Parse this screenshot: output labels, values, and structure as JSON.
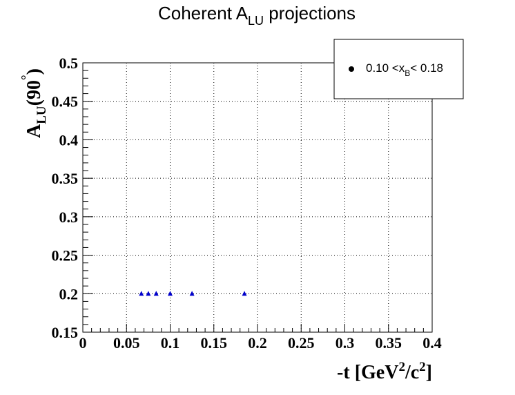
{
  "chart_data": {
    "type": "scatter",
    "title": {
      "main": "Coherent A",
      "sub": "LU",
      "tail": " projections"
    },
    "xlabel": {
      "main": "-t [GeV",
      "sup1": "2",
      "mid": "/c",
      "sup2": "2",
      "end": "]"
    },
    "ylabel": {
      "main": "A",
      "sub": "LU",
      "paren_open": "(90",
      "sup": "°",
      "paren_close": ")"
    },
    "xlim": [
      0,
      0.4
    ],
    "ylim": [
      0.15,
      0.5
    ],
    "xticks": [
      "0",
      "0.05",
      "0.1",
      "0.15",
      "0.2",
      "0.25",
      "0.3",
      "0.35",
      "0.4"
    ],
    "yticks": [
      "0.15",
      "0.2",
      "0.25",
      "0.3",
      "0.35",
      "0.4",
      "0.45",
      "0.5"
    ],
    "grid": true,
    "legend": {
      "placement": "top-right",
      "marker": "black-circle",
      "label_pre": "0.10 <x",
      "label_sub": "B",
      "label_post": "< 0.18"
    },
    "series": [
      {
        "marker": "triangle",
        "color": "#0000cc",
        "points": [
          {
            "x": 0.067,
            "y": 0.2
          },
          {
            "x": 0.075,
            "y": 0.2
          },
          {
            "x": 0.084,
            "y": 0.2
          },
          {
            "x": 0.1,
            "y": 0.2
          },
          {
            "x": 0.125,
            "y": 0.2
          },
          {
            "x": 0.185,
            "y": 0.2
          }
        ]
      }
    ]
  }
}
